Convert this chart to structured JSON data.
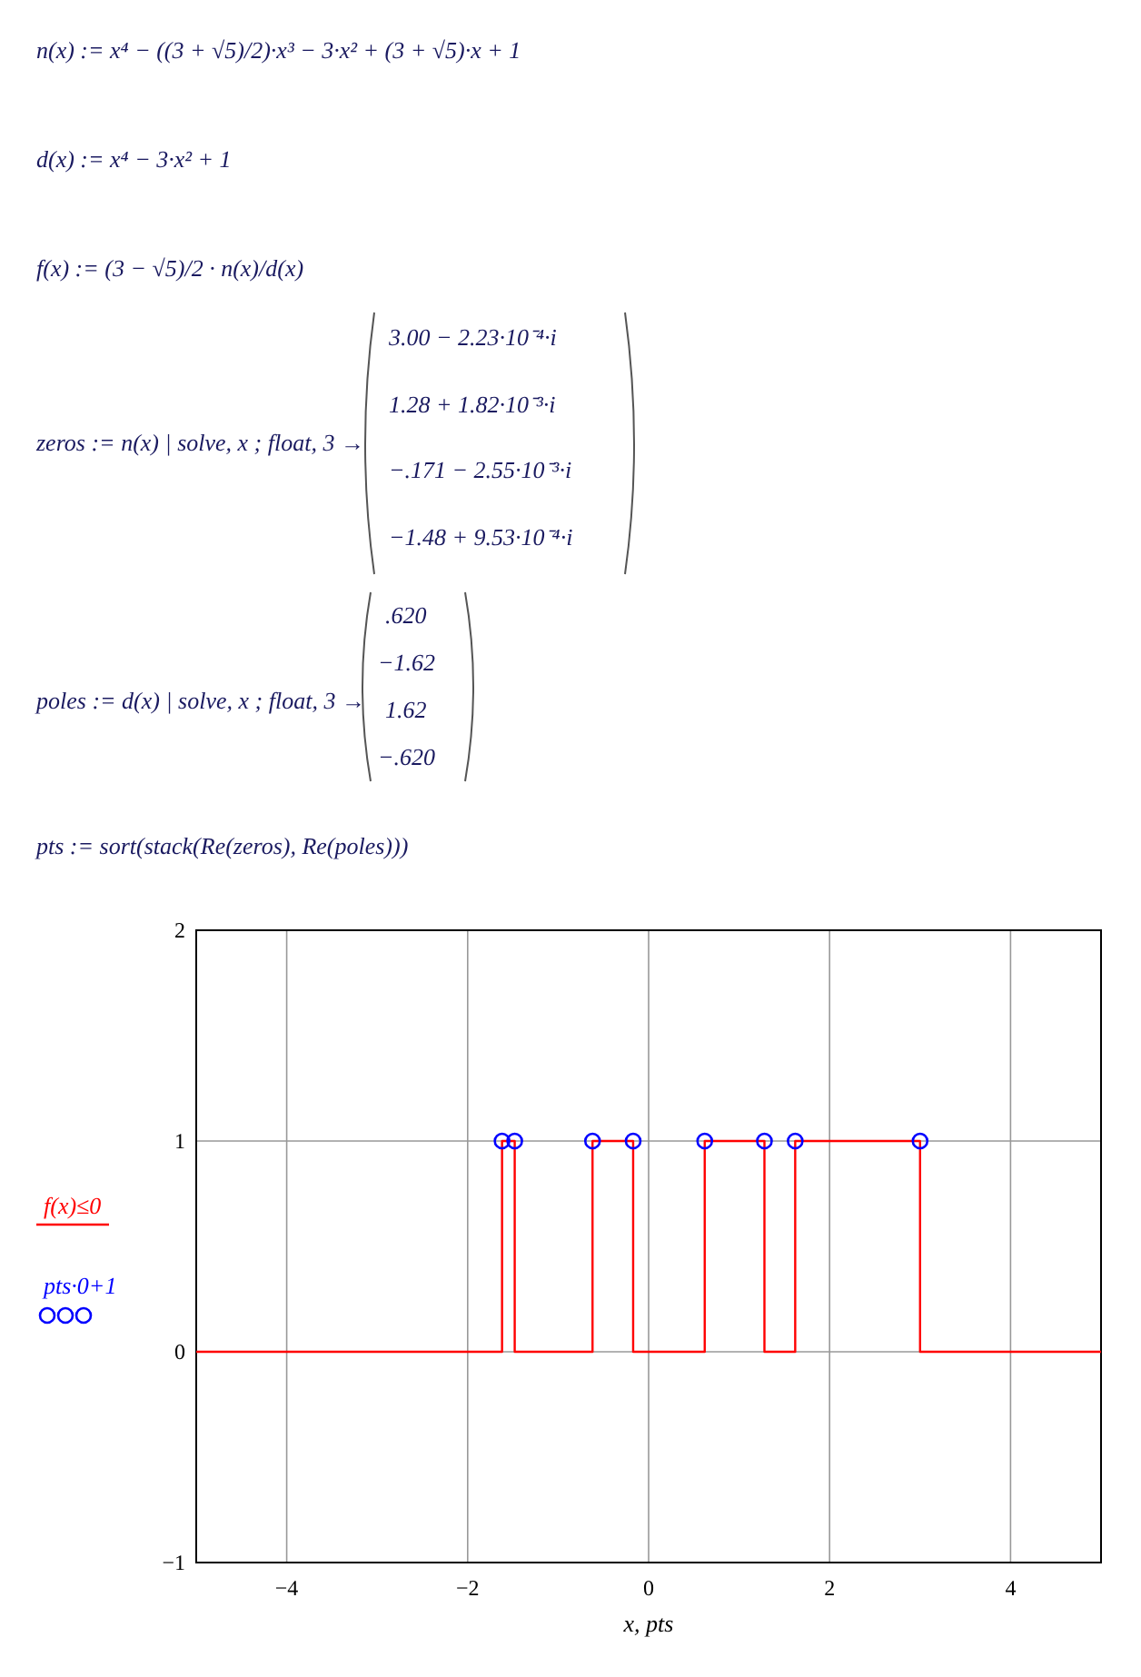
{
  "chart_data": {
    "type": "step",
    "xlabel": "x, pts",
    "xlim": [
      -5,
      5
    ],
    "ylim": [
      -1,
      2
    ],
    "xticks": [
      -4,
      -2,
      0,
      2,
      4
    ],
    "yticks": [
      -1,
      0,
      1,
      2
    ],
    "grid": true,
    "legend": "left",
    "annotations": [
      "n(x) := x⁴ − ((3 + √5)/2)·x³ − 3·x² + (3 + √5)·x + 1",
      "d(x) := x⁴ − 3·x² + 1",
      "f(x) := (3 − √5)/2 · n(x)/d(x)",
      "zeros := n(x) | solve, x ; float, 3 →",
      "3.00 − 2.23·10⁻⁴·i",
      "1.28 + 1.82·10⁻³·i",
      "−.171 − 2.55·10⁻³·i",
      "−1.48 + 9.53·10⁻⁴·i",
      "poles := d(x) | solve, x ; float, 3 →",
      ".620",
      "−1.62",
      "1.62",
      "−.620",
      "pts := sort(stack(Re(zeros), Re(poles)))"
    ],
    "series": [
      {
        "name": "f(x)≤0",
        "color": "#ff0000",
        "x": [
          -5,
          -1.62,
          -1.48,
          -0.62,
          -0.171,
          0.62,
          1.28,
          1.62,
          3.0,
          5
        ],
        "values": [
          0,
          1,
          0,
          1,
          0,
          1,
          0,
          1,
          0,
          0
        ]
      },
      {
        "name": "pts·0+1",
        "type": "scatter",
        "marker": "circle",
        "color": "#0000ff",
        "x": [
          -1.62,
          -1.48,
          -0.62,
          -0.171,
          0.62,
          1.28,
          1.62,
          3.0
        ],
        "values": [
          1,
          1,
          1,
          1,
          1,
          1,
          1,
          1
        ]
      }
    ]
  }
}
